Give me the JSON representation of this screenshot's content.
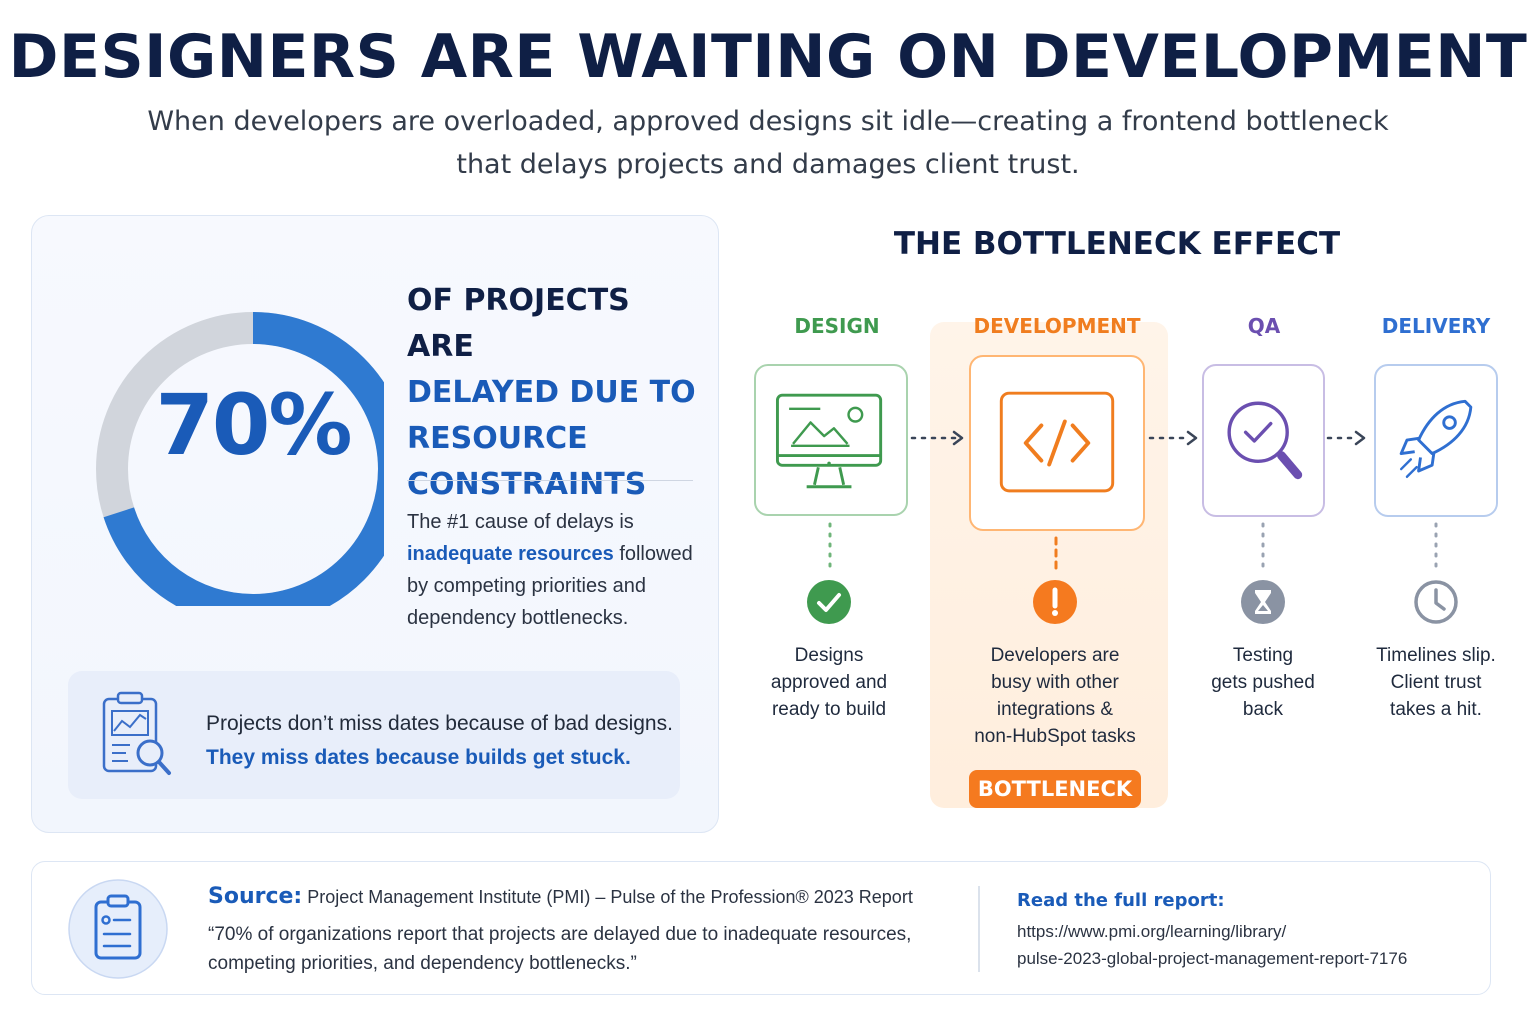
{
  "title": "DESIGNERS ARE WAITING ON DEVELOPMENT",
  "subtitle_line1": "When developers are overloaded, approved designs sit idle—creating a frontend bottleneck",
  "subtitle_line2": "that delays projects and damages client trust.",
  "stat": {
    "value": "70%",
    "percent": 70,
    "headline_line1": "OF PROJECTS ARE",
    "headline_line2": "DELAYED DUE TO",
    "headline_line3": "RESOURCE",
    "headline_line4": "CONSTRAINTS",
    "cause_pre": "The #1 cause of delays is",
    "cause_highlight": "inadequate resources",
    "cause_post": "followed by competing priorities and dependency bottlenecks.",
    "callout_line1": "Projects don’t miss dates because of bad designs.",
    "callout_line2": "They miss dates because builds get stuck.",
    "colors": {
      "accent": "#2f7ad1",
      "remainder": "#d1d5dc"
    }
  },
  "effect": {
    "title": "THE BOTTLENECK EFFECT",
    "stages": [
      {
        "label": "DESIGN",
        "color": "#3f9a4f",
        "icon": "monitor-image-icon",
        "status_icon": "check-circle-icon",
        "desc_line1": "Designs",
        "desc_line2": "approved and",
        "desc_line3": "ready to build",
        "desc_line4": ""
      },
      {
        "label": "DEVELOPMENT",
        "color": "#f07d1f",
        "icon": "code-icon",
        "status_icon": "alert-circle-icon",
        "desc_line1": "Developers are",
        "desc_line2": "busy with other",
        "desc_line3": "integrations &",
        "desc_line4": "non-HubSpot tasks"
      },
      {
        "label": "QA",
        "color": "#6b4fb0",
        "icon": "magnifier-check-icon",
        "status_icon": "hourglass-icon",
        "desc_line1": "Testing",
        "desc_line2": "gets pushed",
        "desc_line3": "back",
        "desc_line4": ""
      },
      {
        "label": "DELIVERY",
        "color": "#2f6fd1",
        "icon": "rocket-icon",
        "status_icon": "clock-icon",
        "desc_line1": "Timelines slip.",
        "desc_line2": "Client trust",
        "desc_line3": "takes a hit.",
        "desc_line4": ""
      }
    ],
    "badge": "BOTTLENECK"
  },
  "source": {
    "label": "Source:",
    "citation": "Project Management Institute (PMI) – Pulse of the Profession® 2023 Report",
    "quote_line1": "“70% of organizations report that projects are delayed due to inadequate resources,",
    "quote_line2": "competing priorities, and dependency bottlenecks.”",
    "report_label": "Read the full report:",
    "url_line1": "https://www.pmi.org/learning/library/",
    "url_line2": "pulse-2023-global-project-management-report-7176"
  }
}
